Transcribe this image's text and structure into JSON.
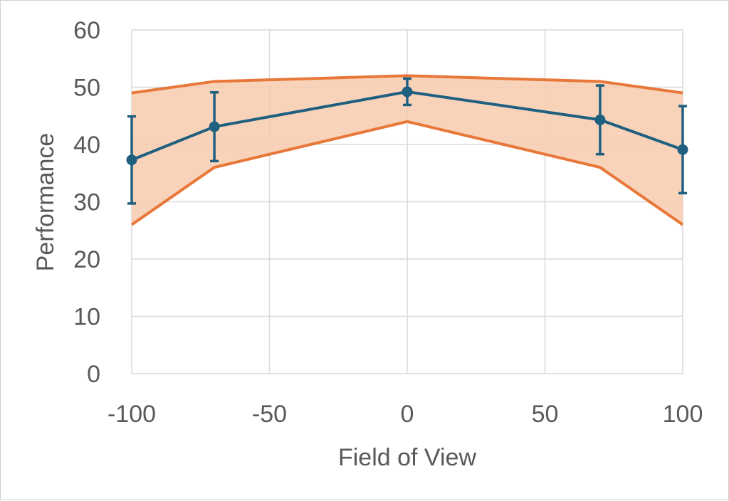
{
  "chart_data": {
    "type": "line",
    "title": "",
    "xlabel": "Field of View",
    "ylabel": "Performance",
    "xlim": [
      -100,
      100
    ],
    "ylim": [
      0,
      60
    ],
    "x_ticks": [
      "-100",
      "-50",
      "0",
      "50",
      "100"
    ],
    "y_ticks": [
      "0",
      "10",
      "20",
      "30",
      "40",
      "50",
      "60"
    ],
    "grid": true,
    "legend": "none",
    "x": [
      -100,
      -70,
      0,
      70,
      100
    ],
    "series": [
      {
        "values": [
          37.3,
          43.1,
          49.2,
          44.3,
          39.1
        ],
        "error": [
          7.6,
          6.0,
          2.3,
          6.0,
          7.6
        ],
        "color": "#1f5f7f"
      }
    ],
    "band": {
      "upper": [
        49,
        51,
        52,
        51,
        49
      ],
      "lower": [
        26,
        36,
        44,
        36,
        26
      ],
      "line_color": "#e8773a",
      "fill_color": "#f8cbad"
    },
    "colors": {
      "grid": "#d9d9d9",
      "text": "#595959"
    }
  }
}
